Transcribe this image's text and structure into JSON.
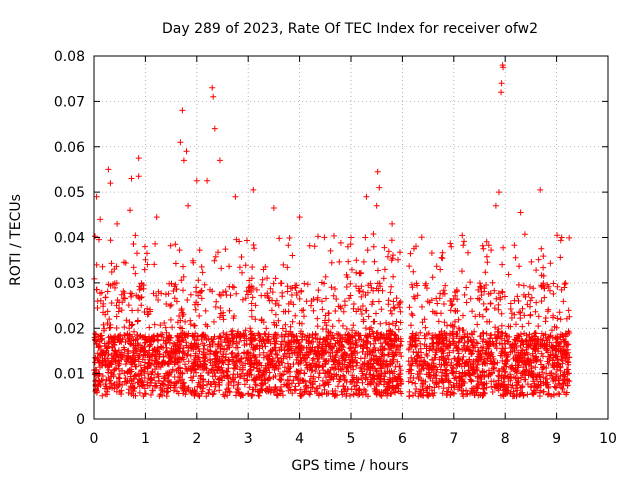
{
  "chart_data": {
    "type": "scatter",
    "title": "Day 289 of 2023, Rate Of TEC Index for receiver ofw2",
    "xlabel": "GPS time / hours",
    "ylabel": "ROTI / TECUs",
    "xlim": [
      0,
      10
    ],
    "ylim": [
      0,
      0.08
    ],
    "x_ticks": [
      "0",
      "1",
      "2",
      "3",
      "4",
      "5",
      "6",
      "7",
      "8",
      "9",
      "10"
    ],
    "y_ticks": [
      "0",
      "0.01",
      "0.02",
      "0.03",
      "0.04",
      "0.05",
      "0.06",
      "0.07",
      "0.08"
    ],
    "grid": true,
    "marker": "+",
    "series_color": "#ff0000",
    "segments": [
      {
        "x_start": 0.0,
        "x_end": 5.98,
        "typical_min": 0.005,
        "typical_max": 0.03
      },
      {
        "x_start": 6.12,
        "x_end": 9.25,
        "typical_min": 0.005,
        "typical_max": 0.03
      }
    ],
    "notable_points": [
      {
        "x": 0.05,
        "y": 0.049
      },
      {
        "x": 0.12,
        "y": 0.044
      },
      {
        "x": 0.28,
        "y": 0.055
      },
      {
        "x": 0.32,
        "y": 0.052
      },
      {
        "x": 0.45,
        "y": 0.043
      },
      {
        "x": 0.7,
        "y": 0.046
      },
      {
        "x": 0.73,
        "y": 0.053
      },
      {
        "x": 0.87,
        "y": 0.0575
      },
      {
        "x": 0.87,
        "y": 0.0535
      },
      {
        "x": 1.22,
        "y": 0.0445
      },
      {
        "x": 1.68,
        "y": 0.061
      },
      {
        "x": 1.72,
        "y": 0.068
      },
      {
        "x": 1.75,
        "y": 0.057
      },
      {
        "x": 1.8,
        "y": 0.059
      },
      {
        "x": 1.83,
        "y": 0.047
      },
      {
        "x": 2.0,
        "y": 0.0525
      },
      {
        "x": 2.2,
        "y": 0.0525
      },
      {
        "x": 2.3,
        "y": 0.073
      },
      {
        "x": 2.32,
        "y": 0.071
      },
      {
        "x": 2.35,
        "y": 0.064
      },
      {
        "x": 2.45,
        "y": 0.057
      },
      {
        "x": 2.75,
        "y": 0.049
      },
      {
        "x": 3.1,
        "y": 0.0505
      },
      {
        "x": 3.5,
        "y": 0.0465
      },
      {
        "x": 4.0,
        "y": 0.0445
      },
      {
        "x": 5.0,
        "y": 0.04
      },
      {
        "x": 5.3,
        "y": 0.049
      },
      {
        "x": 5.52,
        "y": 0.0545
      },
      {
        "x": 5.55,
        "y": 0.051
      },
      {
        "x": 5.5,
        "y": 0.047
      },
      {
        "x": 5.8,
        "y": 0.043
      },
      {
        "x": 7.82,
        "y": 0.047
      },
      {
        "x": 7.88,
        "y": 0.05
      },
      {
        "x": 7.95,
        "y": 0.078
      },
      {
        "x": 7.96,
        "y": 0.0775
      },
      {
        "x": 7.93,
        "y": 0.074
      },
      {
        "x": 7.92,
        "y": 0.072
      },
      {
        "x": 8.3,
        "y": 0.0455
      },
      {
        "x": 8.68,
        "y": 0.0505
      },
      {
        "x": 9.1,
        "y": 0.04
      }
    ]
  }
}
